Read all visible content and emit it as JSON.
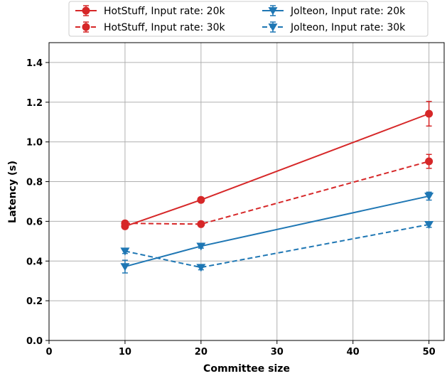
{
  "chart_data": {
    "type": "line",
    "title": "",
    "xlabel": "Committee size",
    "ylabel": "Latency (s)",
    "xlim": [
      0,
      52
    ],
    "ylim": [
      0,
      1.5
    ],
    "x_ticks": [
      0,
      10,
      20,
      30,
      40,
      50
    ],
    "y_ticks": [
      0.0,
      0.2,
      0.4,
      0.6,
      0.8,
      1.0,
      1.2,
      1.4
    ],
    "x_tick_labels": [
      "0",
      "10",
      "20",
      "30",
      "40",
      "50"
    ],
    "y_tick_labels": [
      "0.0",
      "0.2",
      "0.4",
      "0.6",
      "0.8",
      "1.0",
      "1.2",
      "1.4"
    ],
    "grid": true,
    "legend_position": "top-center",
    "legend_columns": 2,
    "series": [
      {
        "name": "HotStuff, Input rate: 20k",
        "color": "#d62728",
        "dash": "solid",
        "marker": "circle",
        "x": [
          10,
          20,
          50
        ],
        "y": [
          0.575,
          0.708,
          1.142
        ],
        "err": [
          0.012,
          0.012,
          0.062
        ]
      },
      {
        "name": "HotStuff, Input rate: 30k",
        "color": "#d62728",
        "dash": "dashed",
        "marker": "circle",
        "x": [
          10,
          20,
          50
        ],
        "y": [
          0.59,
          0.586,
          0.902
        ],
        "err": [
          0.008,
          0.008,
          0.035
        ]
      },
      {
        "name": "Jolteon, Input rate: 20k",
        "color": "#1f77b4",
        "dash": "solid",
        "marker": "triangle-down",
        "x": [
          10,
          20,
          50
        ],
        "y": [
          0.372,
          0.475,
          0.727
        ],
        "err": [
          0.032,
          0.01,
          0.02
        ]
      },
      {
        "name": "Jolteon, Input rate: 30k",
        "color": "#1f77b4",
        "dash": "dashed",
        "marker": "triangle-down",
        "x": [
          10,
          20,
          50
        ],
        "y": [
          0.45,
          0.368,
          0.584
        ],
        "err": [
          0.012,
          0.012,
          0.014
        ]
      }
    ]
  }
}
